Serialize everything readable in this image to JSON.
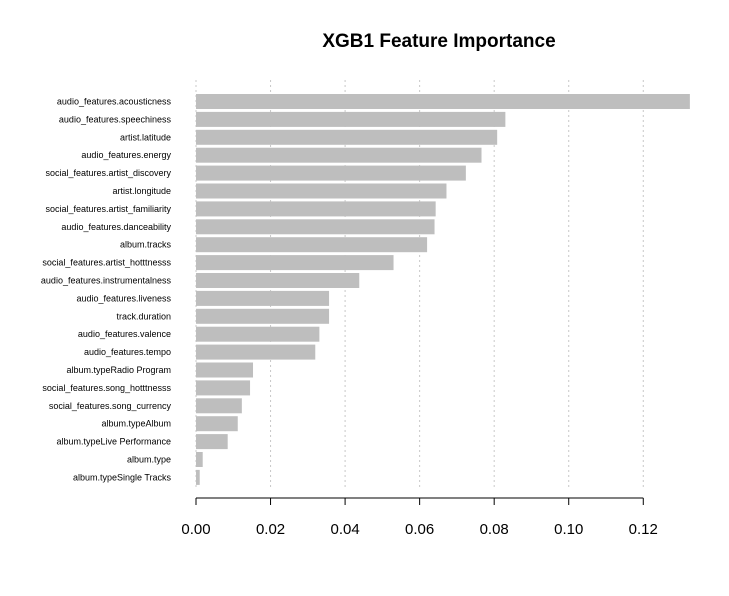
{
  "chart_data": {
    "type": "bar",
    "orientation": "horizontal",
    "title": "XGB1 Feature Importance",
    "xlabel": "",
    "ylabel": "",
    "xlim": [
      0,
      0.132
    ],
    "grid": true,
    "bar_color": "#bebebe",
    "categories": [
      "audio_features.acousticness",
      "audio_features.speechiness",
      "artist.latitude",
      "audio_features.energy",
      "social_features.artist_discovery",
      "artist.longitude",
      "social_features.artist_familiarity",
      "audio_features.danceability",
      "album.tracks",
      "social_features.artist_hotttnesss",
      "audio_features.instrumentalness",
      "audio_features.liveness",
      "track.duration",
      "audio_features.valence",
      "audio_features.tempo",
      "album.typeRadio Program",
      "social_features.song_hotttnesss",
      "social_features.song_currency",
      "album.typeAlbum",
      "album.typeLive Performance",
      "album.type",
      "album.typeSingle Tracks"
    ],
    "values": [
      0.1325,
      0.083,
      0.0808,
      0.0766,
      0.0724,
      0.0672,
      0.0643,
      0.064,
      0.062,
      0.053,
      0.0438,
      0.0357,
      0.0357,
      0.0331,
      0.032,
      0.0153,
      0.0145,
      0.0123,
      0.0112,
      0.0085,
      0.0018,
      0.001
    ],
    "ticks": [
      0,
      0.02,
      0.04,
      0.06,
      0.08,
      0.1,
      0.12
    ],
    "tick_labels": [
      "0.00",
      "0.02",
      "0.04",
      "0.06",
      "0.08",
      "0.10",
      "0.12"
    ]
  }
}
